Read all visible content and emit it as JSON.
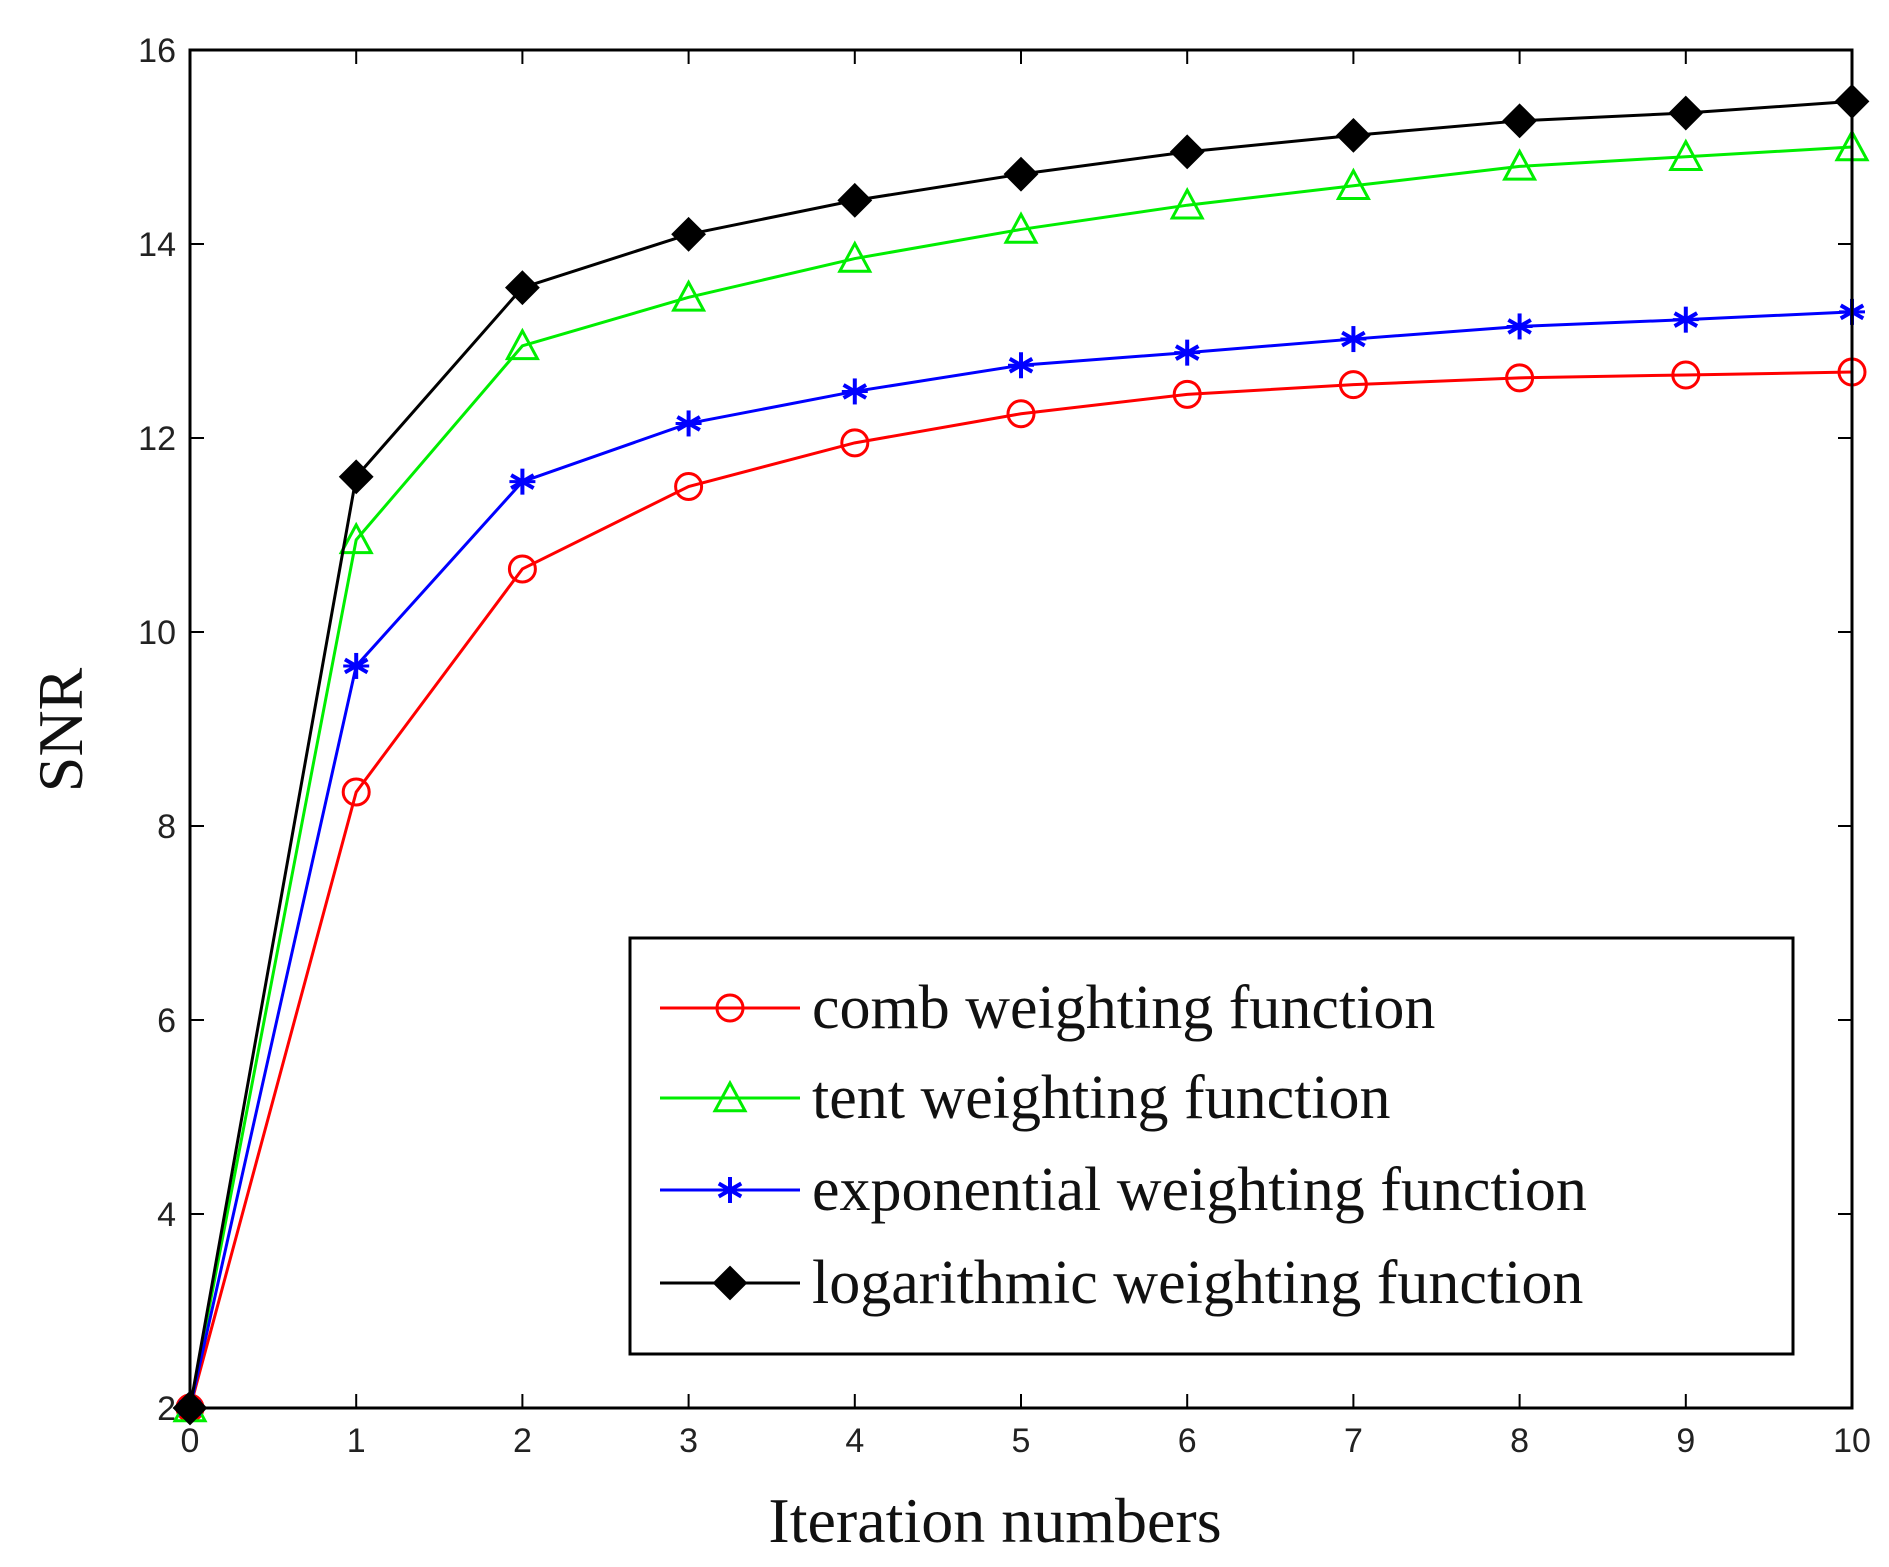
{
  "chart_data": {
    "type": "line",
    "title": "",
    "xlabel": "Iteration numbers",
    "ylabel": "SNR",
    "xlim": [
      0,
      10
    ],
    "ylim": [
      2,
      16
    ],
    "xticks": [
      0,
      1,
      2,
      3,
      4,
      5,
      6,
      7,
      8,
      9,
      10
    ],
    "yticks": [
      2,
      4,
      6,
      8,
      10,
      12,
      14,
      16
    ],
    "grid": false,
    "legend_position": "bottom-right",
    "x": [
      0,
      1,
      2,
      3,
      4,
      5,
      6,
      7,
      8,
      9,
      10
    ],
    "series": [
      {
        "name": "comb weighting function",
        "color": "#ff0000",
        "marker": "circle",
        "values": [
          2.0,
          8.35,
          10.65,
          11.5,
          11.95,
          12.25,
          12.45,
          12.55,
          12.62,
          12.65,
          12.68
        ]
      },
      {
        "name": "tent weighting function",
        "color": "#00ee00",
        "marker": "triangle",
        "values": [
          2.0,
          10.95,
          12.95,
          13.45,
          13.85,
          14.15,
          14.4,
          14.6,
          14.8,
          14.9,
          15.0
        ]
      },
      {
        "name": "exponential weighting function",
        "color": "#0000ff",
        "marker": "star",
        "values": [
          2.0,
          9.65,
          11.55,
          12.15,
          12.48,
          12.75,
          12.88,
          13.02,
          13.15,
          13.22,
          13.3
        ]
      },
      {
        "name": "logarithmic weighting function",
        "color": "#000000",
        "marker": "diamond",
        "values": [
          2.0,
          11.6,
          13.55,
          14.1,
          14.45,
          14.72,
          14.95,
          15.12,
          15.27,
          15.35,
          15.47
        ]
      }
    ]
  }
}
